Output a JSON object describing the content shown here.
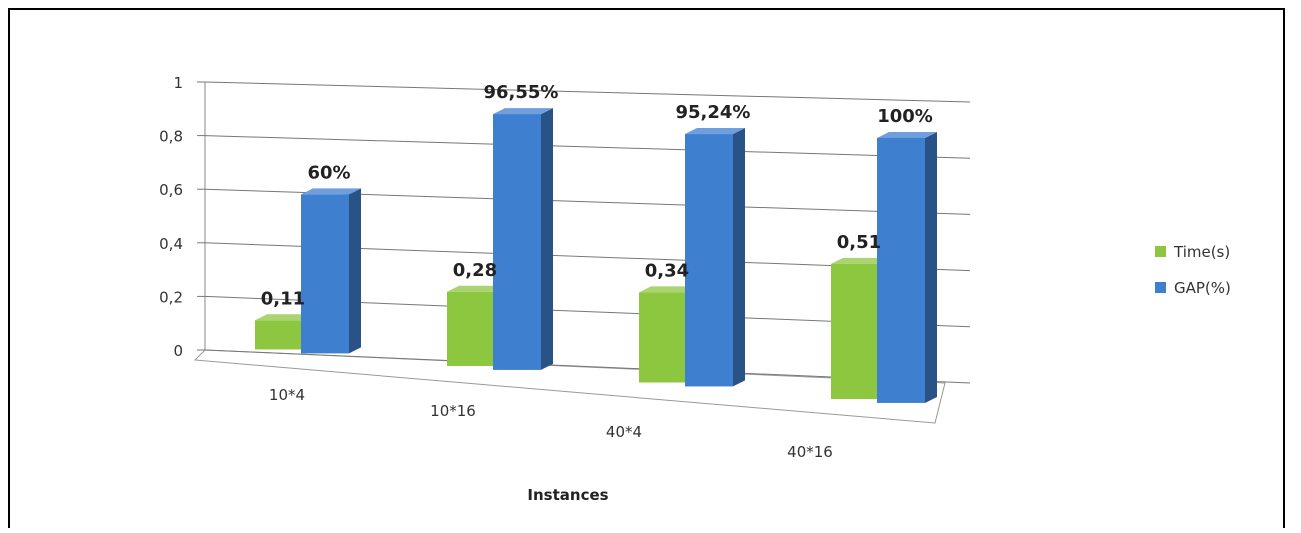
{
  "chart_data": {
    "type": "bar",
    "style": "3d-clustered-column",
    "categories": [
      "10*4",
      "10*16",
      "40*4",
      "40*16"
    ],
    "series": [
      {
        "name": "Time(s)",
        "values": [
          0.11,
          0.28,
          0.34,
          0.51
        ],
        "labels": [
          "0,11",
          "0,28",
          "0,34",
          "0,51"
        ],
        "color": "#8dc63f"
      },
      {
        "name": "GAP(%)",
        "values": [
          0.6,
          0.9655,
          0.9524,
          1.0
        ],
        "labels": [
          "60%",
          "96,55%",
          "95,24%",
          "100%"
        ],
        "color": "#3f7fd0"
      }
    ],
    "ylim": [
      0,
      1
    ],
    "yticks": [
      0,
      0.2,
      0.4,
      0.6,
      0.8,
      1
    ],
    "ytick_labels": [
      "0",
      "0,2",
      "0,4",
      "0,6",
      "0,8",
      "1"
    ],
    "xlabel": "Instances",
    "ylabel": "",
    "grid": true,
    "legend_position": "right"
  }
}
